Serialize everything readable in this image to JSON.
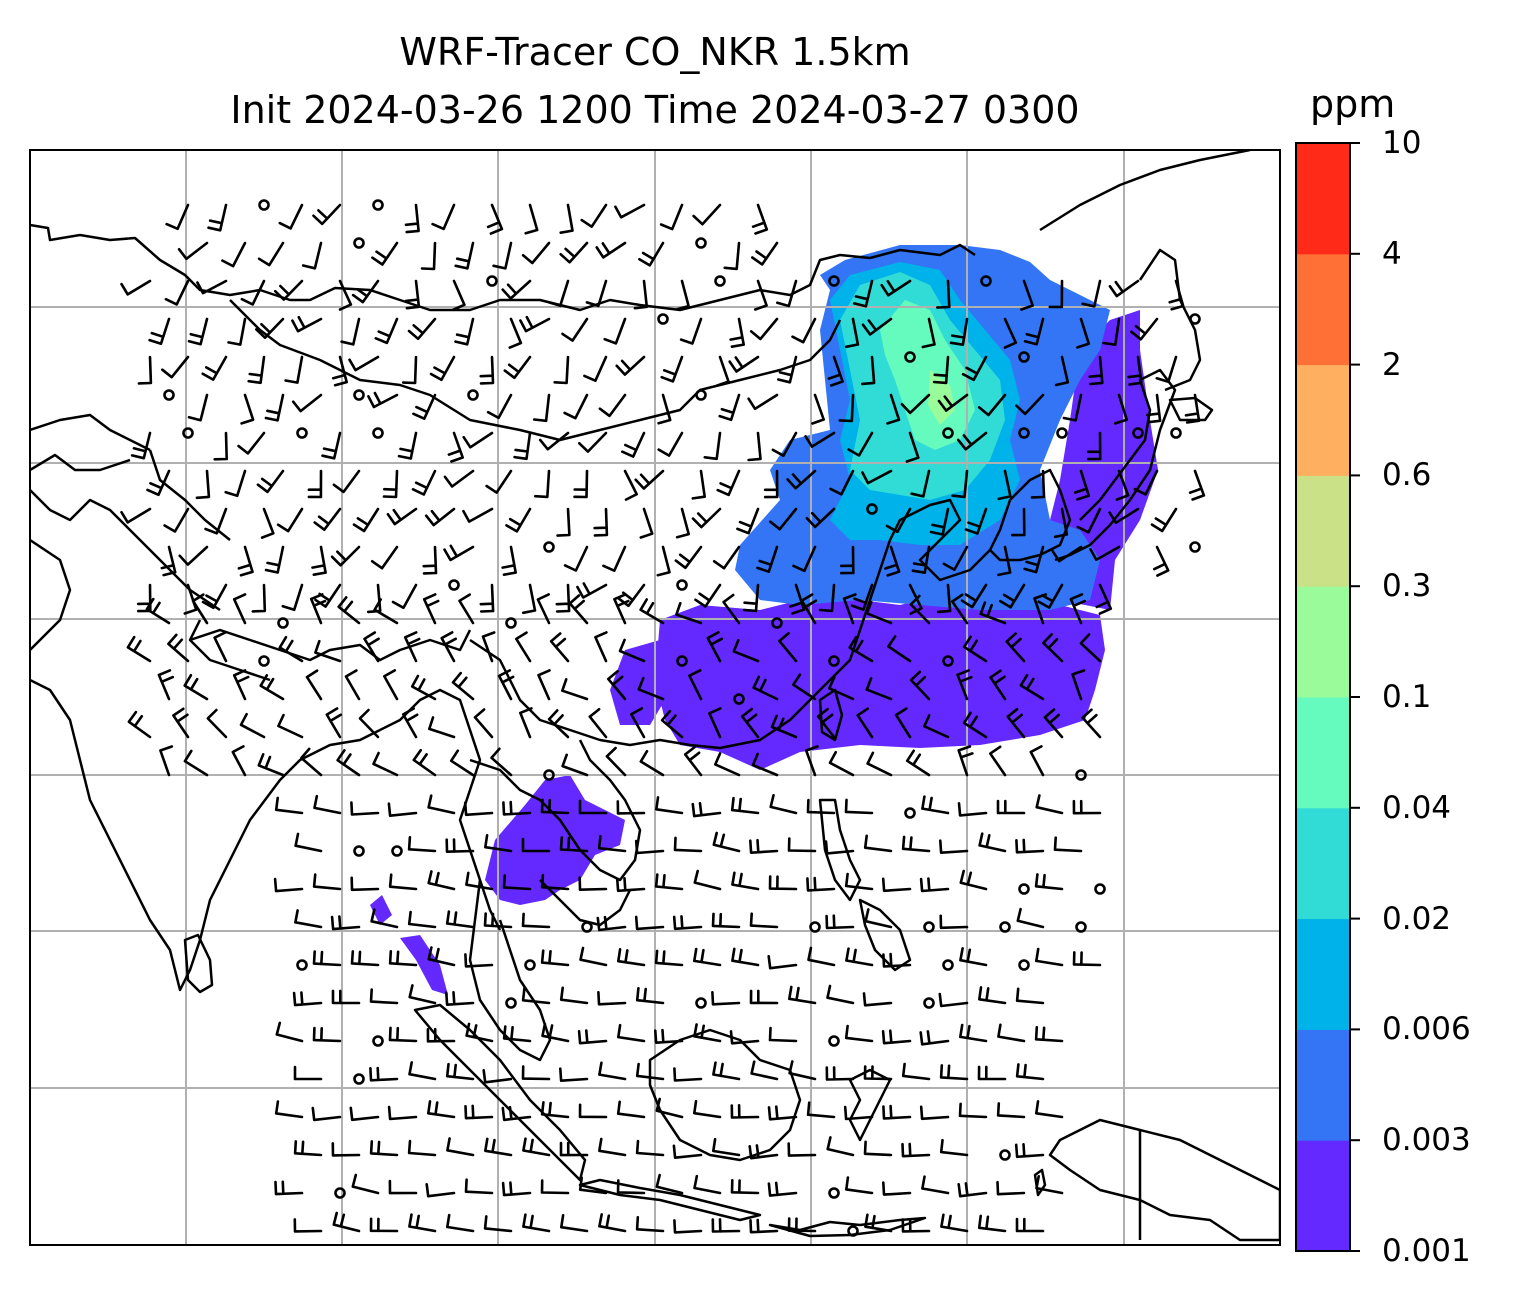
{
  "title": {
    "line1": "WRF-Tracer CO_NKR 1.5km",
    "line2": "Init 2024-03-26 1200 Time 2024-03-27 0300"
  },
  "colorbar": {
    "unit": "ppm",
    "ticks": [
      "0.001",
      "0.003",
      "0.006",
      "0.02",
      "0.04",
      "0.1",
      "0.3",
      "0.6",
      "2",
      "4",
      "10"
    ],
    "colors": [
      "#6429ff",
      "#3375f5",
      "#00b2ea",
      "#30dcd5",
      "#66fbbe",
      "#99fb99",
      "#cbe187",
      "#ffaf60",
      "#ff7037",
      "#ff2a17"
    ]
  },
  "map": {
    "gridline_color": "#b0b0b0",
    "coastline_color": "#000000"
  }
}
